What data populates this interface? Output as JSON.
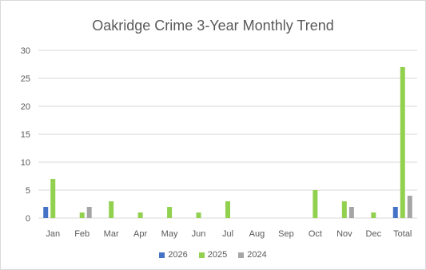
{
  "chart_data": {
    "type": "bar",
    "title": "Oakridge Crime 3-Year Monthly Trend",
    "categories": [
      "Jan",
      "Feb",
      "Mar",
      "Apr",
      "May",
      "Jun",
      "Jul",
      "Aug",
      "Sep",
      "Oct",
      "Nov",
      "Dec",
      "Total"
    ],
    "series": [
      {
        "name": "2026",
        "color": "#4472c4",
        "values": [
          2,
          0,
          0,
          0,
          0,
          0,
          0,
          0,
          0,
          0,
          0,
          0,
          2
        ]
      },
      {
        "name": "2025",
        "color": "#92d050",
        "values": [
          7,
          1,
          3,
          1,
          2,
          1,
          3,
          0,
          0,
          5,
          3,
          1,
          27
        ]
      },
      {
        "name": "2024",
        "color": "#a5a5a5",
        "values": [
          0,
          2,
          0,
          0,
          0,
          0,
          0,
          0,
          0,
          0,
          2,
          0,
          4
        ]
      }
    ],
    "ylim": [
      0,
      30
    ],
    "yticks": [
      0,
      5,
      10,
      15,
      20,
      25,
      30
    ],
    "grid": true,
    "legend": "bottom"
  }
}
